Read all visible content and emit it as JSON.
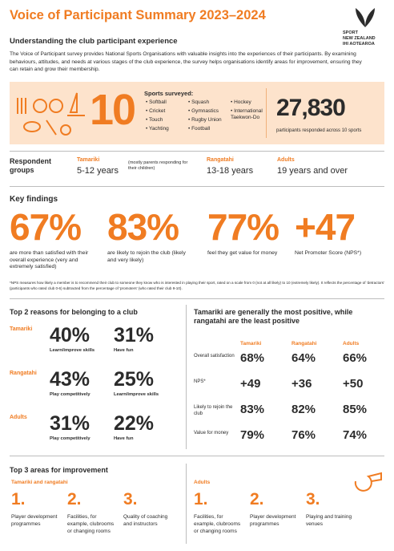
{
  "header": {
    "title": "Voice of Participant Summary 2023–2024",
    "logo": [
      "SPORT",
      "NEW ZEALAND",
      "IHI AOTEAROA"
    ]
  },
  "intro": {
    "heading": "Understanding the club participant experience",
    "text": "The Voice of Participant survey provides National Sports Organisations with valuable insights into the experiences of their participants. By examining behaviours, attitudes, and needs at various stages of the club experience, the survey helps organisations identify areas for improvement, ensuring they can retain and grow their membership."
  },
  "sports": {
    "count": "10",
    "label": "Sports surveyed:",
    "list": [
      "Softball",
      "Cricket",
      "Touch",
      "Yachting",
      "Squash",
      "Gymnastics",
      "Rugby Union",
      "Football",
      "Hockey",
      "International Taekwon-Do"
    ]
  },
  "participants": {
    "number": "27,830",
    "caption": "participants responded across 10 sports"
  },
  "groups": {
    "label": "Respondent groups",
    "items": [
      {
        "name": "Tamariki",
        "age": "5-12 years",
        "note": "(mostly parents responding for their children)"
      },
      {
        "name": "Rangatahi",
        "age": "13-18 years"
      },
      {
        "name": "Adults",
        "age": "19 years and over"
      }
    ]
  },
  "key_findings": {
    "heading": "Key findings",
    "items": [
      {
        "value": "67%",
        "text": "are more than satisfied with their overall experience (very and extremely satisfied)"
      },
      {
        "value": "83%",
        "text": "are likely to rejoin the club (likely and very likely)"
      },
      {
        "value": "77%",
        "text": "feel they get value for money"
      },
      {
        "value": "+47",
        "text": "Net Promoter Score (NPS*)"
      }
    ],
    "footnote": "*NPS measures how likely a member is to recommend their club to someone they know who is interested in playing their sport, rated on a scale from 0 (not at all likely) to 10 (extremely likely). It reflects the percentage of 'detractors' (participants who rated club 0-6) subtracted from the percentage of 'promoters' (who rated their club 9-10)."
  },
  "reasons": {
    "heading": "Top 2 reasons for belonging to a club",
    "groups": [
      {
        "name": "Tamariki",
        "items": [
          {
            "value": "40%",
            "label": "Learn/improve skills"
          },
          {
            "value": "31%",
            "label": "Have fun"
          }
        ]
      },
      {
        "name": "Rangatahi",
        "items": [
          {
            "value": "43%",
            "label": "Play competitively"
          },
          {
            "value": "25%",
            "label": "Learn/improve skills"
          }
        ]
      },
      {
        "name": "Adults",
        "items": [
          {
            "value": "31%",
            "label": "Play competitively"
          },
          {
            "value": "22%",
            "label": "Have fun"
          }
        ]
      }
    ]
  },
  "comparison": {
    "title": "Tamariki are generally the most positive, while rangatahi are the least positive",
    "columns": [
      "Tamariki",
      "Rangatahi",
      "Adults"
    ],
    "rows": [
      {
        "label": "Overall satisfaction",
        "values": [
          "68%",
          "64%",
          "66%"
        ]
      },
      {
        "label": "NPS*",
        "values": [
          "+49",
          "+36",
          "+50"
        ]
      },
      {
        "label": "Likely to rejoin the club",
        "values": [
          "83%",
          "82%",
          "85%"
        ]
      },
      {
        "label": "Value for money",
        "values": [
          "79%",
          "76%",
          "74%"
        ]
      }
    ]
  },
  "improvement": {
    "heading": "Top 3 areas for improvement",
    "groups": [
      {
        "name": "Tamariki and rangatahi",
        "items": [
          {
            "number": "1.",
            "text": "Player development programmes"
          },
          {
            "number": "2.",
            "text": "Facilities, for example, clubrooms or changing rooms"
          },
          {
            "number": "3.",
            "text": "Quality of coaching and instructors"
          }
        ]
      },
      {
        "name": "Adults",
        "items": [
          {
            "number": "1.",
            "text": "Facilities, for example, clubrooms or changing rooms"
          },
          {
            "number": "2.",
            "text": "Player development programmes"
          },
          {
            "number": "3.",
            "text": "Playing and training venues"
          }
        ]
      }
    ]
  }
}
